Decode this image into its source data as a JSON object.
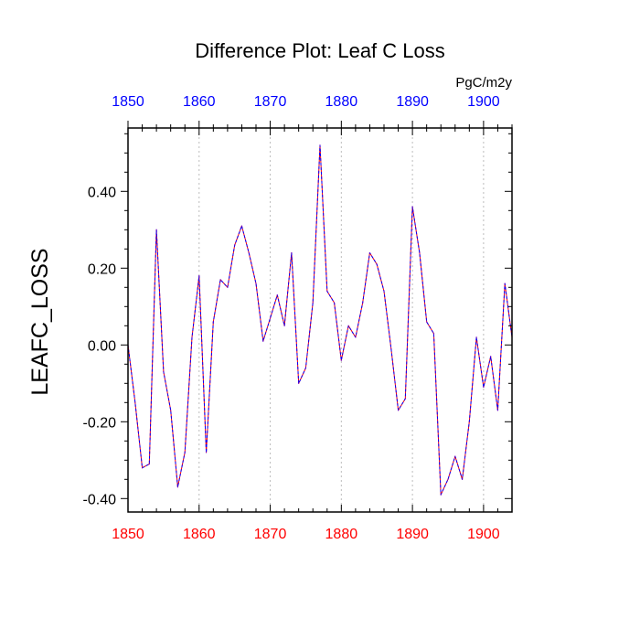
{
  "chart_data": {
    "type": "line",
    "title": "Difference Plot: Leaf C Loss",
    "units": "PgC/m2y",
    "ylabel": "LEAFC_LOSS",
    "xlabel": "",
    "xlim": [
      1850,
      1904
    ],
    "ylim": [
      -0.435,
      0.565
    ],
    "x_ticks_bottom": [
      "1850",
      "1860",
      "1870",
      "1880",
      "1890",
      "1900"
    ],
    "x_ticks_top": [
      "1850",
      "1860",
      "1870",
      "1880",
      "1890",
      "1900"
    ],
    "y_ticks": [
      {
        "value": 0.4,
        "label": "0.40"
      },
      {
        "value": 0.2,
        "label": "0.20"
      },
      {
        "value": 0.0,
        "label": "0.00"
      },
      {
        "value": -0.2,
        "label": "-0.20"
      },
      {
        "value": -0.4,
        "label": "-0.40"
      }
    ],
    "grid_x": [
      1860,
      1870,
      1880,
      1890,
      1900
    ],
    "colors": {
      "line": "#6a00cc",
      "bottom_axis_labels": "#ff0000",
      "top_axis_labels": "#0000ff"
    },
    "series": [
      {
        "name": "LEAFC_LOSS",
        "x": [
          1850,
          1851,
          1852,
          1853,
          1854,
          1855,
          1856,
          1857,
          1858,
          1859,
          1860,
          1861,
          1862,
          1863,
          1864,
          1865,
          1866,
          1867,
          1868,
          1869,
          1870,
          1871,
          1872,
          1873,
          1874,
          1875,
          1876,
          1877,
          1878,
          1879,
          1880,
          1881,
          1882,
          1883,
          1884,
          1885,
          1886,
          1887,
          1888,
          1889,
          1890,
          1891,
          1892,
          1893,
          1894,
          1895,
          1896,
          1897,
          1898,
          1899,
          1900,
          1901,
          1902,
          1903,
          1904
        ],
        "values": [
          0.0,
          -0.15,
          -0.32,
          -0.31,
          0.3,
          -0.07,
          -0.17,
          -0.37,
          -0.28,
          0.02,
          0.18,
          -0.28,
          0.06,
          0.17,
          0.15,
          0.26,
          0.31,
          0.24,
          0.16,
          0.01,
          0.07,
          0.13,
          0.05,
          0.24,
          -0.1,
          -0.06,
          0.11,
          0.52,
          0.14,
          0.11,
          -0.04,
          0.05,
          0.02,
          0.11,
          0.24,
          0.21,
          0.14,
          -0.01,
          -0.17,
          -0.14,
          0.36,
          0.24,
          0.06,
          0.03,
          -0.39,
          -0.35,
          -0.29,
          -0.35,
          -0.2,
          0.02,
          -0.11,
          -0.03,
          -0.17,
          0.16,
          0.02
        ]
      }
    ]
  }
}
